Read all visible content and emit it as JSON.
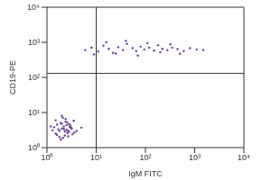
{
  "chart_data": {
    "type": "scatter",
    "x_label": "IgM FITC",
    "y_label": "CD19-PE",
    "log": true,
    "color": "#6b3f94",
    "marker": "dot",
    "grid": false,
    "xlim": [
      1,
      10000
    ],
    "ylim": [
      1,
      10000
    ],
    "xticks": [
      {
        "value": 1,
        "label": "10⁰"
      },
      {
        "value": 10,
        "label": "10¹"
      },
      {
        "value": 100,
        "label": "10²"
      },
      {
        "value": 1000,
        "label": "10³"
      },
      {
        "value": 10000,
        "label": "10⁴"
      }
    ],
    "yticks": [
      {
        "value": 1,
        "label": "10⁰"
      },
      {
        "value": 10,
        "label": "10¹"
      },
      {
        "value": 100,
        "label": "10²"
      },
      {
        "value": 1000,
        "label": "10³"
      },
      {
        "value": 10000,
        "label": "10⁴"
      }
    ],
    "quadrant": {
      "x": 10,
      "y": 130
    },
    "x": [
      1.5,
      1.8,
      2.0,
      2.2,
      2.5,
      2.8,
      3.1,
      1.6,
      1.9,
      2.3,
      2.6,
      3.0,
      1.4,
      1.7,
      2.1,
      2.4,
      2.7,
      3.3,
      1.5,
      2.0,
      2.2,
      2.9,
      3.6,
      1.8,
      2.1,
      2.5,
      1.3,
      2.3,
      2.6,
      3.2,
      1.9,
      2.4,
      4.0,
      1.6,
      2.8,
      5.0,
      1.2,
      3.5,
      2.0,
      2.7,
      6,
      8,
      11,
      14,
      18,
      22,
      28,
      35,
      42,
      55,
      65,
      80,
      95,
      120,
      150,
      180,
      220,
      280,
      350,
      450,
      600,
      800,
      1100,
      1500,
      9,
      16,
      25,
      40,
      70,
      110,
      200,
      320,
      500
    ],
    "y": [
      2.5,
      3.0,
      3.5,
      4.0,
      3.2,
      2.8,
      3.6,
      4.5,
      5.0,
      2.2,
      2.6,
      4.2,
      3.8,
      3.3,
      1.9,
      5.5,
      3.0,
      2.4,
      6.0,
      4.8,
      3.4,
      3.9,
      2.7,
      2.0,
      7.0,
      4.4,
      3.1,
      2.9,
      5.2,
      3.5,
      1.7,
      6.5,
      3.0,
      2.3,
      4.6,
      3.7,
      4.0,
      5.8,
      8.0,
      2.1,
      600,
      700,
      550,
      800,
      650,
      500,
      720,
      600,
      900,
      680,
      560,
      750,
      620,
      700,
      580,
      820,
      650,
      600,
      700,
      640,
      560,
      680,
      620,
      600,
      450,
      1000,
      480,
      1100,
      420,
      950,
      520,
      880,
      470
    ]
  }
}
